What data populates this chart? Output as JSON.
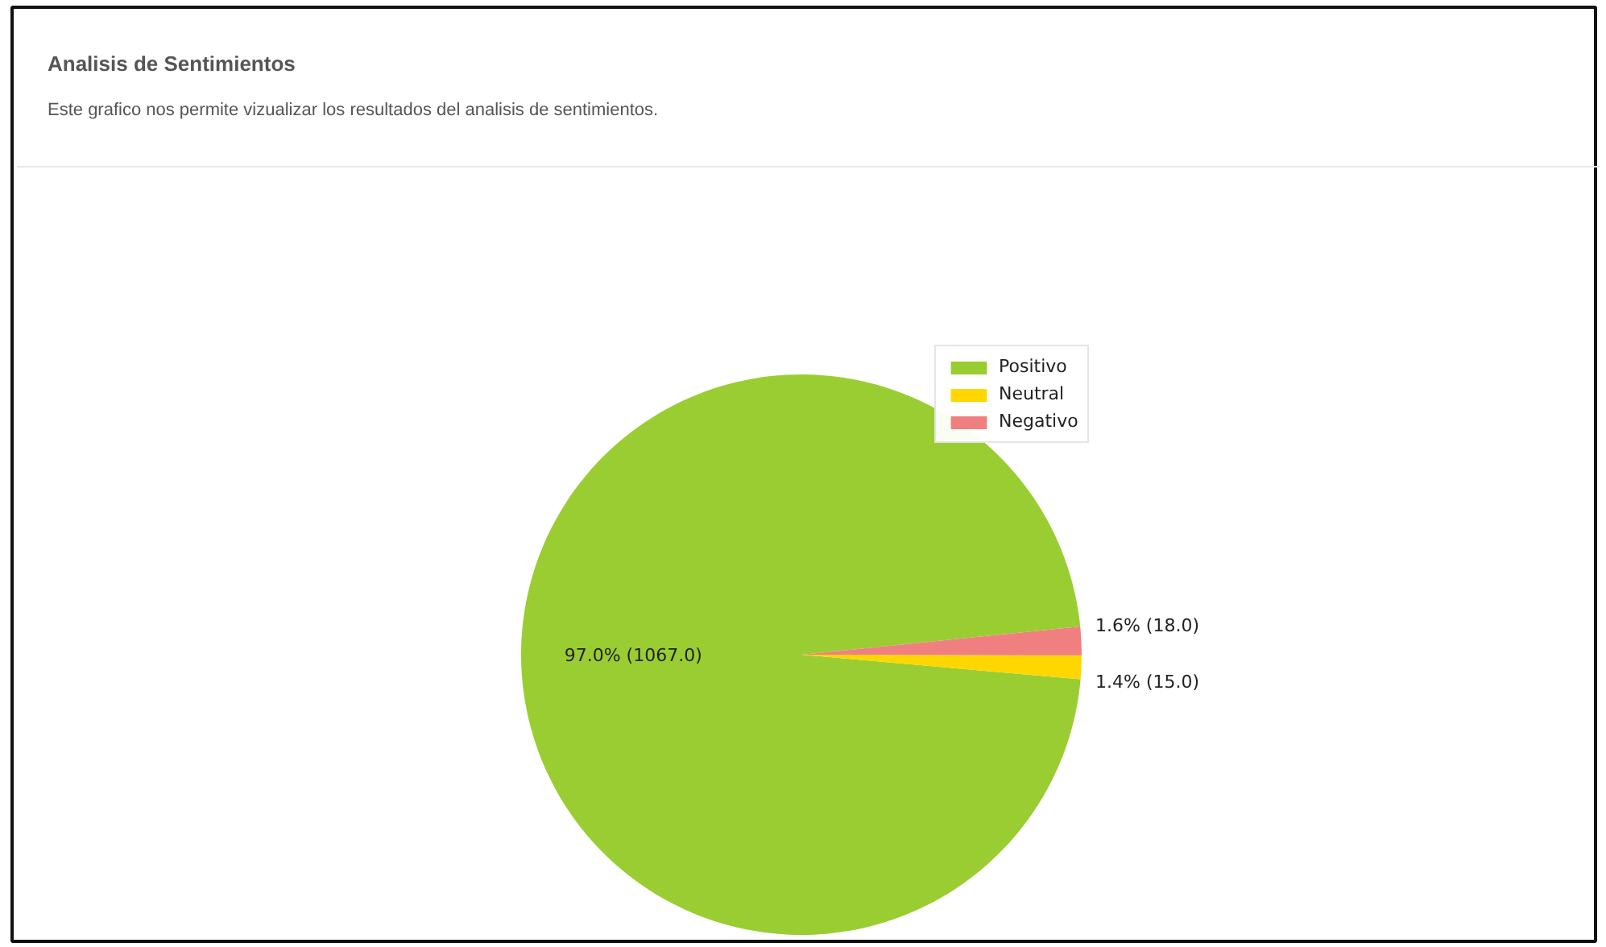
{
  "chart_data": {
    "type": "pie",
    "title": "Analisis de Sentimientos",
    "subtitle": "Este grafico nos permite vizualizar los resultados del analisis de sentimientos.",
    "categories": [
      "Positivo",
      "Neutral",
      "Negativo"
    ],
    "values": [
      1067,
      15,
      18
    ],
    "colors": [
      "#9acd32",
      "#ffd700",
      "#f08080"
    ],
    "value_labels": [
      "97.0% (1067.0)",
      "1.4% (15.0)",
      "1.6% (18.0)"
    ],
    "legend": "top right"
  }
}
